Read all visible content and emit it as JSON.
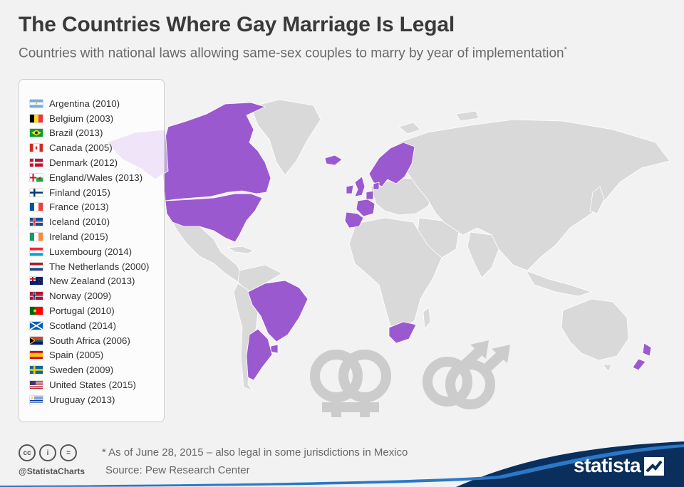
{
  "header": {
    "title": "The Countries Where Gay Marriage Is Legal",
    "subtitle": "Countries with national laws allowing same-sex couples to marry by year of implementation",
    "subtitle_marker": "*"
  },
  "legend": {
    "items": [
      {
        "label": "Argentina (2010)",
        "flag": "argentina-flag"
      },
      {
        "label": "Belgium (2003)",
        "flag": "belgium-flag"
      },
      {
        "label": "Brazil (2013)",
        "flag": "brazil-flag"
      },
      {
        "label": "Canada (2005)",
        "flag": "canada-flag"
      },
      {
        "label": "Denmark (2012)",
        "flag": "denmark-flag"
      },
      {
        "label": "England/Wales (2013)",
        "flag": "england-wales-flag"
      },
      {
        "label": "Finland (2015)",
        "flag": "finland-flag"
      },
      {
        "label": "France (2013)",
        "flag": "france-flag"
      },
      {
        "label": "Iceland (2010)",
        "flag": "iceland-flag"
      },
      {
        "label": "Ireland (2015)",
        "flag": "ireland-flag"
      },
      {
        "label": "Luxembourg (2014)",
        "flag": "luxembourg-flag"
      },
      {
        "label": "The Netherlands (2000)",
        "flag": "netherlands-flag"
      },
      {
        "label": "New Zealand (2013)",
        "flag": "new-zealand-flag"
      },
      {
        "label": "Norway (2009)",
        "flag": "norway-flag"
      },
      {
        "label": "Portugal (2010)",
        "flag": "portugal-flag"
      },
      {
        "label": "Scotland (2014)",
        "flag": "scotland-flag"
      },
      {
        "label": "South Africa (2006)",
        "flag": "south-africa-flag"
      },
      {
        "label": "Spain (2005)",
        "flag": "spain-flag"
      },
      {
        "label": "Sweden (2009)",
        "flag": "sweden-flag"
      },
      {
        "label": "United States (2015)",
        "flag": "united-states-flag"
      },
      {
        "label": "Uruguay (2013)",
        "flag": "uruguay-flag"
      }
    ]
  },
  "map": {
    "highlight_color": "#9b59d0",
    "base_color": "#d9d9d9",
    "symbols": [
      "female-couple-symbol-icon",
      "male-couple-symbol-icon"
    ]
  },
  "footer": {
    "license_icons": [
      "cc-icon",
      "by-icon",
      "nd-icon"
    ],
    "license_labels": {
      "cc": "cc",
      "by": "i",
      "nd": "="
    },
    "handle": "@StatistaCharts",
    "note": "* As of June 28, 2015 – also legal in some jurisdictions in Mexico",
    "source": "Source: Pew Research Center",
    "brand": "statista",
    "brand_color": "#0b2f5c"
  }
}
